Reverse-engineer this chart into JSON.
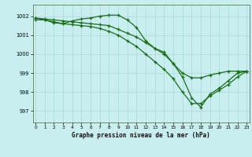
{
  "title": "Graphe pression niveau de la mer (hPa)",
  "bg_color": "#c8eef0",
  "grid_color": "#a8d8d8",
  "line_color": "#1a6e1a",
  "x_ticks": [
    0,
    1,
    2,
    3,
    4,
    5,
    6,
    7,
    8,
    9,
    10,
    11,
    12,
    13,
    14,
    15,
    16,
    17,
    18,
    19,
    20,
    21,
    22,
    23
  ],
  "y_ticks": [
    997,
    998,
    999,
    1000,
    1001,
    1002
  ],
  "ylim": [
    996.4,
    1002.6
  ],
  "xlim": [
    -0.3,
    23.3
  ],
  "line1_x": [
    0,
    1,
    2,
    3,
    4,
    5,
    6,
    7,
    8,
    9,
    10,
    11,
    12,
    13,
    14,
    15,
    16,
    17,
    18,
    19,
    20,
    21,
    22,
    23
  ],
  "line1_y": [
    1001.8,
    1001.8,
    1001.65,
    1001.6,
    1001.55,
    1001.5,
    1001.45,
    1001.35,
    1001.2,
    1001.0,
    1000.7,
    1000.4,
    1000.0,
    999.6,
    999.2,
    998.7,
    998.0,
    997.4,
    997.4,
    997.8,
    998.1,
    998.4,
    998.8,
    999.1
  ],
  "line2_x": [
    0,
    1,
    2,
    3,
    4,
    5,
    6,
    7,
    8,
    9,
    10,
    11,
    12,
    13,
    14,
    15,
    16,
    17,
    18,
    19,
    20,
    21,
    22,
    23
  ],
  "line2_y": [
    1001.9,
    1001.8,
    1001.7,
    1001.6,
    1001.75,
    1001.85,
    1001.9,
    1002.0,
    1002.05,
    1002.05,
    1001.8,
    1001.4,
    1000.7,
    1000.3,
    1000.1,
    999.5,
    998.8,
    997.7,
    997.2,
    997.9,
    998.2,
    998.6,
    999.0,
    999.1
  ],
  "line3_x": [
    0,
    1,
    2,
    3,
    4,
    5,
    6,
    7,
    8,
    9,
    10,
    11,
    12,
    13,
    14,
    15,
    16,
    17,
    18,
    19,
    20,
    21,
    22,
    23
  ],
  "line3_y": [
    1001.9,
    1001.85,
    1001.8,
    1001.75,
    1001.7,
    1001.65,
    1001.6,
    1001.55,
    1001.5,
    1001.3,
    1001.1,
    1000.9,
    1000.6,
    1000.3,
    1000.0,
    999.5,
    999.0,
    998.75,
    998.75,
    998.9,
    999.0,
    999.1,
    999.1,
    999.1
  ]
}
